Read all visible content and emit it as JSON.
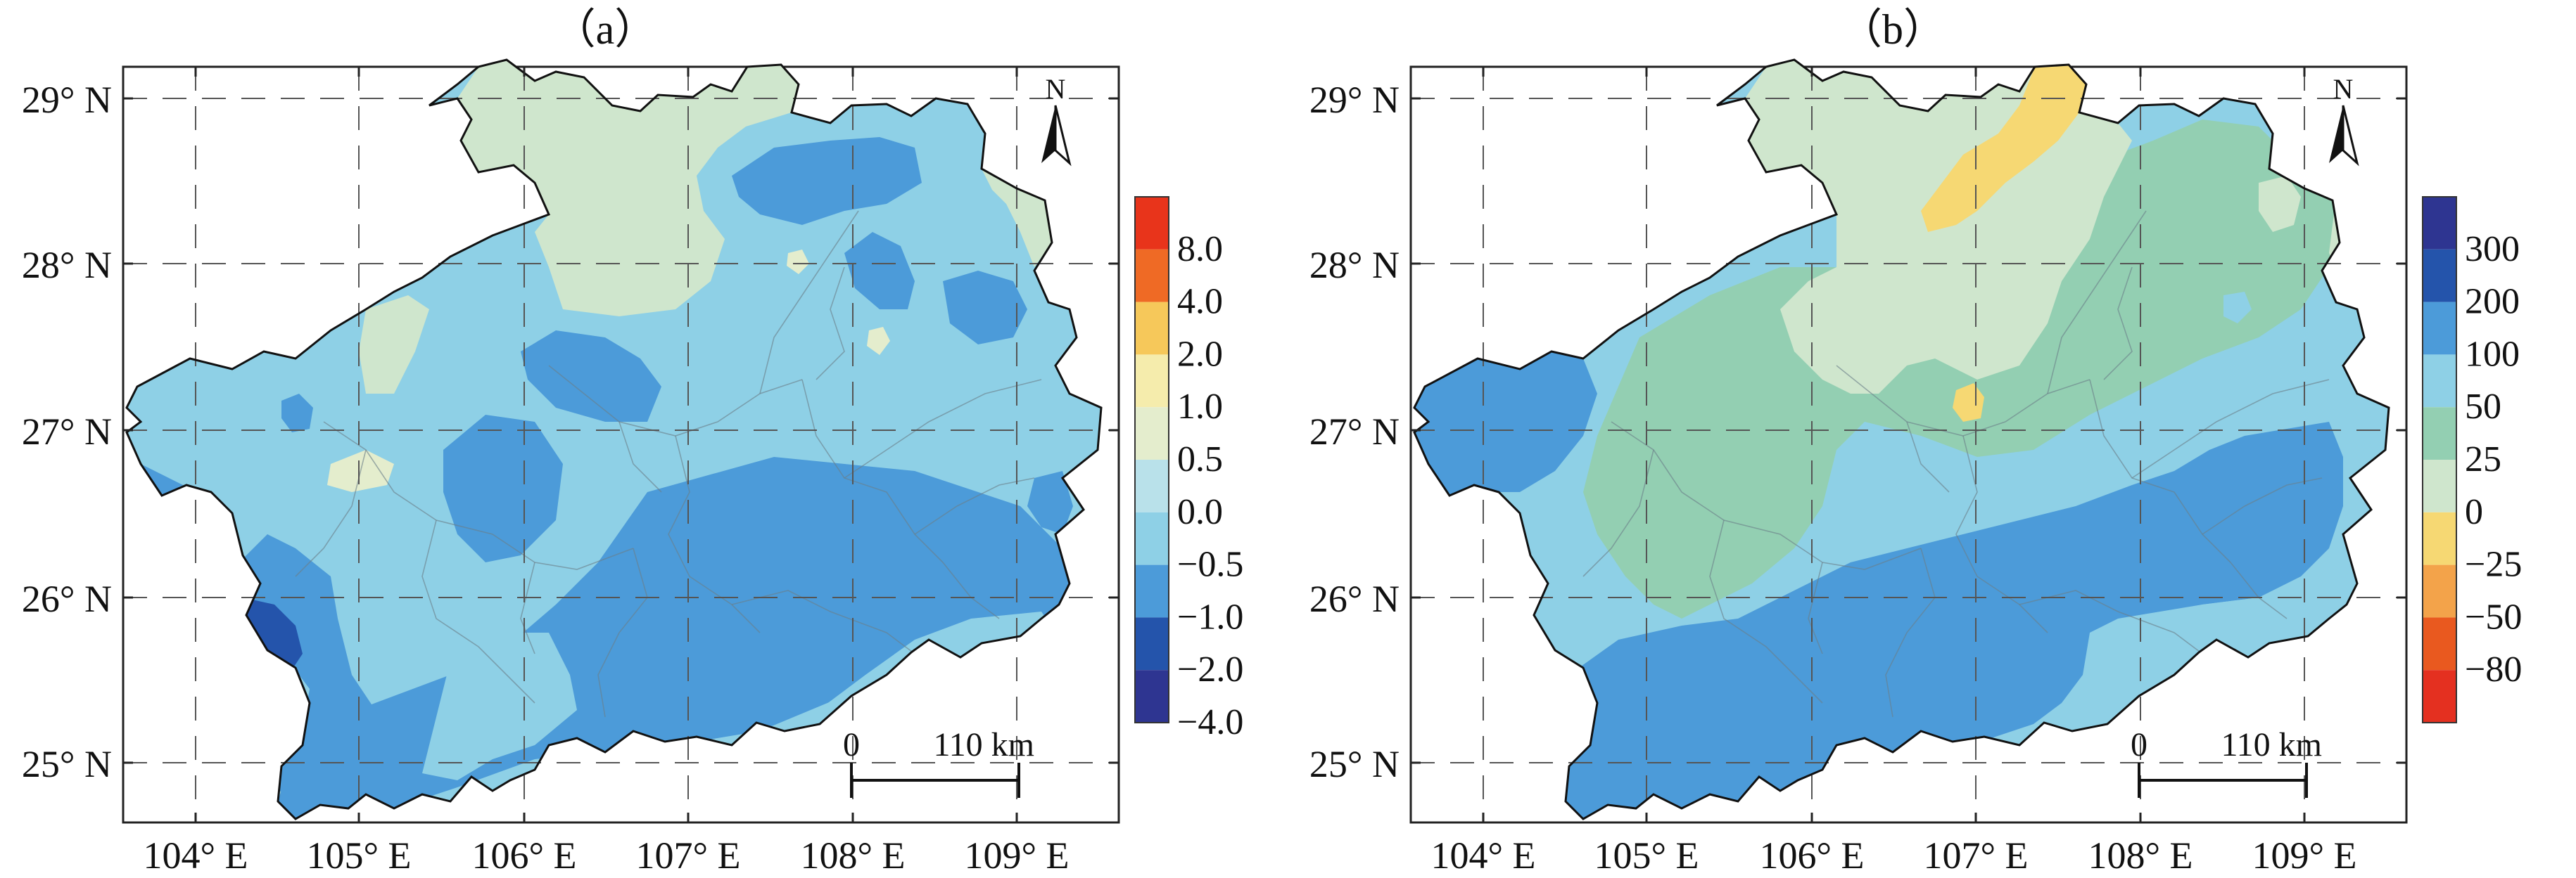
{
  "panels": [
    {
      "id": "a",
      "title": "（a）",
      "lat_labels": [
        "29° N",
        "28° N",
        "27° N",
        "26° N",
        "25° N"
      ],
      "lon_labels": [
        "104° E",
        "105° E",
        "106° E",
        "107° E",
        "108° E",
        "109° E"
      ],
      "north_label": "N",
      "scale_zero": "0",
      "scale_dist": "110 km",
      "legend_colors": [
        "#e8341b",
        "#ef6a25",
        "#f6c85a",
        "#f5ecac",
        "#e4edcd",
        "#b9e1ea",
        "#8ed0e6",
        "#4c9bd9",
        "#2454ab",
        "#2e3591"
      ],
      "legend_labels": [
        "8.0",
        "4.0",
        "2.0",
        "1.0",
        "0.5",
        "0.0",
        "−0.5",
        "−1.0",
        "−2.0",
        "−4.0"
      ]
    },
    {
      "id": "b",
      "title": "（b）",
      "lat_labels": [
        "29° N",
        "28° N",
        "27° N",
        "26° N",
        "25° N"
      ],
      "lon_labels": [
        "104° E",
        "105° E",
        "106° E",
        "107° E",
        "108° E",
        "109° E"
      ],
      "north_label": "N",
      "scale_zero": "0",
      "scale_dist": "110 km",
      "legend_colors": [
        "#2e3591",
        "#2454ab",
        "#4c9bd9",
        "#8ed0e6",
        "#93cfb2",
        "#cfe6cd",
        "#f6d873",
        "#f3a34a",
        "#e9591f",
        "#e43020"
      ],
      "legend_labels": [
        "300",
        "200",
        "100",
        "50",
        "25",
        "0",
        "−25",
        "−50",
        "−80"
      ]
    }
  ]
}
